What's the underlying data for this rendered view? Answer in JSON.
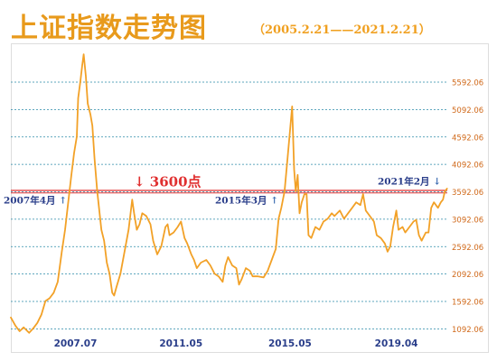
{
  "header": {
    "title": "上证指数走势图",
    "subtitle": "（2005.2.21——2021.2.21）"
  },
  "colors": {
    "title": "#e89a1c",
    "subtitle": "#f0a020",
    "line": "#f2a127",
    "grid": "#2a8aa8",
    "threshold": "#e03030",
    "annotation": "#2a3e8a",
    "arrow": "#3a6ab0",
    "tick": "#d0691a"
  },
  "chart_data": {
    "type": "line",
    "title": "上证指数走势图",
    "subtitle": "（2005.2.21——2021.2.21）",
    "xlabel": "",
    "ylabel": "",
    "x_range": [
      "2005.02",
      "2021.02"
    ],
    "ylim": [
      1000,
      6300
    ],
    "grid": true,
    "y_ticks": [
      "1092.06",
      "1592.06",
      "2092.06",
      "2592.06",
      "3092.06",
      "3592.06",
      "4092.06",
      "4592.06",
      "5092.06",
      "5592.06"
    ],
    "x_ticks": [
      {
        "label": "2007.07",
        "x": 2007.5
      },
      {
        "label": "2011.05",
        "x": 2011.37
      },
      {
        "label": "2015.05",
        "x": 2015.37
      },
      {
        "label": "2019.04",
        "x": 2019.27
      }
    ],
    "threshold": {
      "value": 3592.06,
      "label": "3600点",
      "arrow": "↓"
    },
    "annotations": [
      {
        "text": "2007年4月",
        "arrow": "↑",
        "x": 2007.28
      },
      {
        "text": "2015年3月",
        "arrow": "↑",
        "x": 2015.17
      },
      {
        "text": "2021年2月",
        "arrow": "↓",
        "x": 2021.08
      }
    ],
    "series": [
      {
        "points": [
          [
            2005.13,
            1300
          ],
          [
            2005.3,
            1150
          ],
          [
            2005.45,
            1050
          ],
          [
            2005.6,
            1120
          ],
          [
            2005.8,
            1020
          ],
          [
            2005.95,
            1100
          ],
          [
            2006.1,
            1200
          ],
          [
            2006.25,
            1350
          ],
          [
            2006.4,
            1600
          ],
          [
            2006.55,
            1650
          ],
          [
            2006.7,
            1750
          ],
          [
            2006.85,
            1950
          ],
          [
            2007.0,
            2500
          ],
          [
            2007.12,
            2900
          ],
          [
            2007.28,
            3600
          ],
          [
            2007.35,
            3900
          ],
          [
            2007.45,
            4300
          ],
          [
            2007.55,
            4600
          ],
          [
            2007.6,
            5300
          ],
          [
            2007.68,
            5600
          ],
          [
            2007.75,
            5900
          ],
          [
            2007.8,
            6100
          ],
          [
            2007.88,
            5700
          ],
          [
            2007.95,
            5200
          ],
          [
            2008.05,
            5000
          ],
          [
            2008.12,
            4800
          ],
          [
            2008.2,
            4200
          ],
          [
            2008.3,
            3600
          ],
          [
            2008.45,
            2900
          ],
          [
            2008.55,
            2700
          ],
          [
            2008.65,
            2300
          ],
          [
            2008.75,
            2100
          ],
          [
            2008.85,
            1750
          ],
          [
            2008.92,
            1700
          ],
          [
            2009.0,
            1850
          ],
          [
            2009.15,
            2100
          ],
          [
            2009.3,
            2500
          ],
          [
            2009.45,
            2900
          ],
          [
            2009.58,
            3450
          ],
          [
            2009.65,
            3200
          ],
          [
            2009.75,
            2900
          ],
          [
            2009.85,
            3000
          ],
          [
            2009.95,
            3200
          ],
          [
            2010.1,
            3150
          ],
          [
            2010.25,
            3000
          ],
          [
            2010.35,
            2700
          ],
          [
            2010.5,
            2450
          ],
          [
            2010.65,
            2600
          ],
          [
            2010.8,
            2950
          ],
          [
            2010.88,
            3000
          ],
          [
            2010.95,
            2800
          ],
          [
            2011.1,
            2850
          ],
          [
            2011.25,
            2950
          ],
          [
            2011.37,
            3050
          ],
          [
            2011.5,
            2750
          ],
          [
            2011.6,
            2650
          ],
          [
            2011.75,
            2450
          ],
          [
            2011.85,
            2350
          ],
          [
            2011.95,
            2200
          ],
          [
            2012.1,
            2300
          ],
          [
            2012.3,
            2350
          ],
          [
            2012.45,
            2250
          ],
          [
            2012.6,
            2100
          ],
          [
            2012.75,
            2050
          ],
          [
            2012.9,
            1950
          ],
          [
            2013.0,
            2250
          ],
          [
            2013.1,
            2400
          ],
          [
            2013.25,
            2250
          ],
          [
            2013.4,
            2200
          ],
          [
            2013.5,
            1900
          ],
          [
            2013.6,
            2000
          ],
          [
            2013.75,
            2200
          ],
          [
            2013.9,
            2150
          ],
          [
            2014.0,
            2050
          ],
          [
            2014.2,
            2050
          ],
          [
            2014.4,
            2030
          ],
          [
            2014.55,
            2150
          ],
          [
            2014.7,
            2350
          ],
          [
            2014.85,
            2550
          ],
          [
            2014.95,
            3100
          ],
          [
            2015.05,
            3300
          ],
          [
            2015.17,
            3600
          ],
          [
            2015.28,
            4200
          ],
          [
            2015.37,
            4700
          ],
          [
            2015.45,
            5150
          ],
          [
            2015.52,
            4000
          ],
          [
            2015.58,
            3600
          ],
          [
            2015.65,
            3900
          ],
          [
            2015.72,
            3200
          ],
          [
            2015.8,
            3400
          ],
          [
            2015.9,
            3550
          ],
          [
            2015.98,
            3550
          ],
          [
            2016.05,
            2800
          ],
          [
            2016.15,
            2750
          ],
          [
            2016.3,
            2950
          ],
          [
            2016.45,
            2900
          ],
          [
            2016.6,
            3050
          ],
          [
            2016.75,
            3100
          ],
          [
            2016.9,
            3200
          ],
          [
            2017.0,
            3150
          ],
          [
            2017.2,
            3250
          ],
          [
            2017.35,
            3100
          ],
          [
            2017.5,
            3200
          ],
          [
            2017.65,
            3300
          ],
          [
            2017.8,
            3400
          ],
          [
            2017.95,
            3350
          ],
          [
            2018.05,
            3550
          ],
          [
            2018.15,
            3250
          ],
          [
            2018.3,
            3150
          ],
          [
            2018.45,
            3050
          ],
          [
            2018.55,
            2800
          ],
          [
            2018.7,
            2750
          ],
          [
            2018.85,
            2650
          ],
          [
            2018.95,
            2500
          ],
          [
            2019.05,
            2600
          ],
          [
            2019.15,
            2950
          ],
          [
            2019.27,
            3250
          ],
          [
            2019.35,
            2900
          ],
          [
            2019.5,
            2950
          ],
          [
            2019.6,
            2850
          ],
          [
            2019.75,
            2950
          ],
          [
            2019.9,
            3050
          ],
          [
            2020.0,
            3080
          ],
          [
            2020.1,
            2800
          ],
          [
            2020.2,
            2700
          ],
          [
            2020.35,
            2850
          ],
          [
            2020.45,
            2850
          ],
          [
            2020.55,
            3300
          ],
          [
            2020.65,
            3400
          ],
          [
            2020.8,
            3300
          ],
          [
            2020.9,
            3400
          ],
          [
            2020.98,
            3450
          ],
          [
            2021.05,
            3600
          ],
          [
            2021.13,
            3650
          ]
        ]
      }
    ]
  }
}
